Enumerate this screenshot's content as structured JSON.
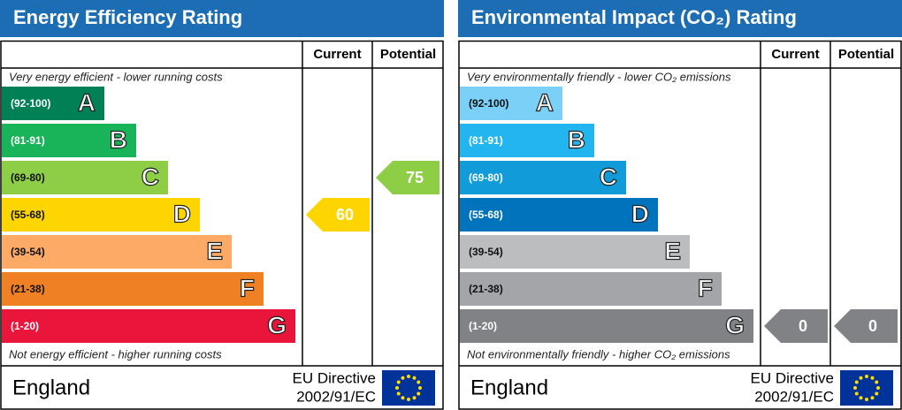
{
  "panels": [
    {
      "title": "Energy Efficiency Rating",
      "columns": [
        "Current",
        "Potential"
      ],
      "top_note": "Very energy efficient - lower running costs",
      "bottom_note": "Not energy efficient - higher running costs",
      "bands": [
        {
          "range": "(92-100)",
          "min": 92,
          "max": 100,
          "letter": "A",
          "color": "#008054"
        },
        {
          "range": "(81-91)",
          "min": 81,
          "max": 91,
          "letter": "B",
          "color": "#19b459"
        },
        {
          "range": "(69-80)",
          "min": 69,
          "max": 80,
          "letter": "C",
          "color": "#8dce46"
        },
        {
          "range": "(55-68)",
          "min": 55,
          "max": 68,
          "letter": "D",
          "color": "#ffd500"
        },
        {
          "range": "(39-54)",
          "min": 39,
          "max": 54,
          "letter": "E",
          "color": "#fcaa65"
        },
        {
          "range": "(21-38)",
          "min": 21,
          "max": 38,
          "letter": "F",
          "color": "#ef8023"
        },
        {
          "range": "(1-20)",
          "min": 1,
          "max": 20,
          "letter": "G",
          "color": "#e9153b"
        }
      ],
      "current": 60,
      "potential": 75,
      "country": "England",
      "directive": "EU Directive",
      "directive_code": "2002/91/EC"
    },
    {
      "title": "Environmental Impact (CO₂) Rating",
      "columns": [
        "Current",
        "Potential"
      ],
      "top_note": "Very environmentally friendly - lower CO₂ emissions",
      "bottom_note": "Not environmentally friendly - higher CO₂ emissions",
      "bands": [
        {
          "range": "(92-100)",
          "min": 92,
          "max": 100,
          "letter": "A",
          "color": "#7ad0f7"
        },
        {
          "range": "(81-91)",
          "min": 81,
          "max": 91,
          "letter": "B",
          "color": "#22b5ef"
        },
        {
          "range": "(69-80)",
          "min": 69,
          "max": 80,
          "letter": "C",
          "color": "#119bd8"
        },
        {
          "range": "(55-68)",
          "min": 55,
          "max": 68,
          "letter": "D",
          "color": "#0073bd"
        },
        {
          "range": "(39-54)",
          "min": 39,
          "max": 54,
          "letter": "E",
          "color": "#bbbdbf"
        },
        {
          "range": "(21-38)",
          "min": 21,
          "max": 38,
          "letter": "F",
          "color": "#a3a5a8"
        },
        {
          "range": "(1-20)",
          "min": 1,
          "max": 20,
          "letter": "G",
          "color": "#808285"
        }
      ],
      "current": 0,
      "potential": 0,
      "country": "England",
      "directive": "EU Directive",
      "directive_code": "2002/91/EC"
    }
  ]
}
